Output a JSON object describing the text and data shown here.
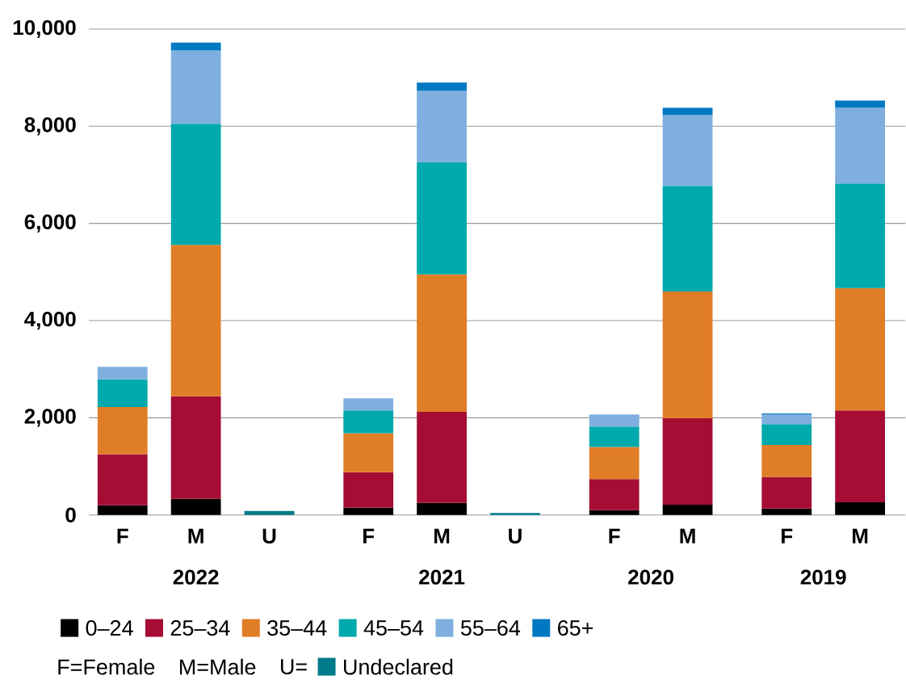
{
  "chart_data": {
    "type": "bar",
    "stacked": true,
    "categories": [
      "F",
      "M",
      "U",
      null,
      "F",
      "M",
      "U",
      null,
      "F",
      "M",
      null,
      "F",
      "M"
    ],
    "series": [
      {
        "name": "0–24",
        "color": "#000000",
        "values": [
          200,
          330,
          null,
          null,
          150,
          250,
          null,
          null,
          100,
          210,
          null,
          130,
          260
        ]
      },
      {
        "name": "25–34",
        "color": "#a50d35",
        "values": [
          1050,
          2110,
          null,
          null,
          730,
          1870,
          null,
          null,
          640,
          1780,
          null,
          650,
          1890
        ]
      },
      {
        "name": "35–44",
        "color": "#e07d27",
        "values": [
          970,
          3120,
          null,
          null,
          800,
          2830,
          null,
          null,
          660,
          2610,
          null,
          660,
          2520
        ]
      },
      {
        "name": "45–54",
        "color": "#00a9ac",
        "values": [
          570,
          2490,
          null,
          null,
          470,
          2310,
          null,
          null,
          420,
          2170,
          null,
          430,
          2150
        ]
      },
      {
        "name": "55–64",
        "color": "#7fafdf",
        "values": [
          260,
          1510,
          null,
          null,
          250,
          1470,
          null,
          null,
          250,
          1460,
          null,
          200,
          1560
        ]
      },
      {
        "name": "65+",
        "color": "#0079c2",
        "values": [
          null,
          160,
          null,
          null,
          null,
          170,
          null,
          null,
          null,
          150,
          null,
          20,
          150
        ]
      },
      {
        "name": "Undeclared",
        "color": "#007b8a",
        "values": [
          null,
          null,
          80,
          null,
          null,
          null,
          40,
          null,
          null,
          null,
          null,
          null,
          null
        ]
      }
    ],
    "ylim": [
      0,
      10000
    ],
    "yticks": [
      0,
      {
        "value": 2000,
        "label": "2,000"
      },
      {
        "value": 4000,
        "label": "4,000"
      },
      {
        "value": 6000,
        "label": "6,000"
      },
      {
        "value": 8000,
        "label": "8,000"
      },
      {
        "value": 10000,
        "label": "10,000"
      }
    ],
    "grid": "y",
    "legend": "bottom",
    "annotations": [
      "2022",
      "2021",
      "2020",
      "2019",
      "F=Female",
      "M=Male",
      "U="
    ]
  }
}
